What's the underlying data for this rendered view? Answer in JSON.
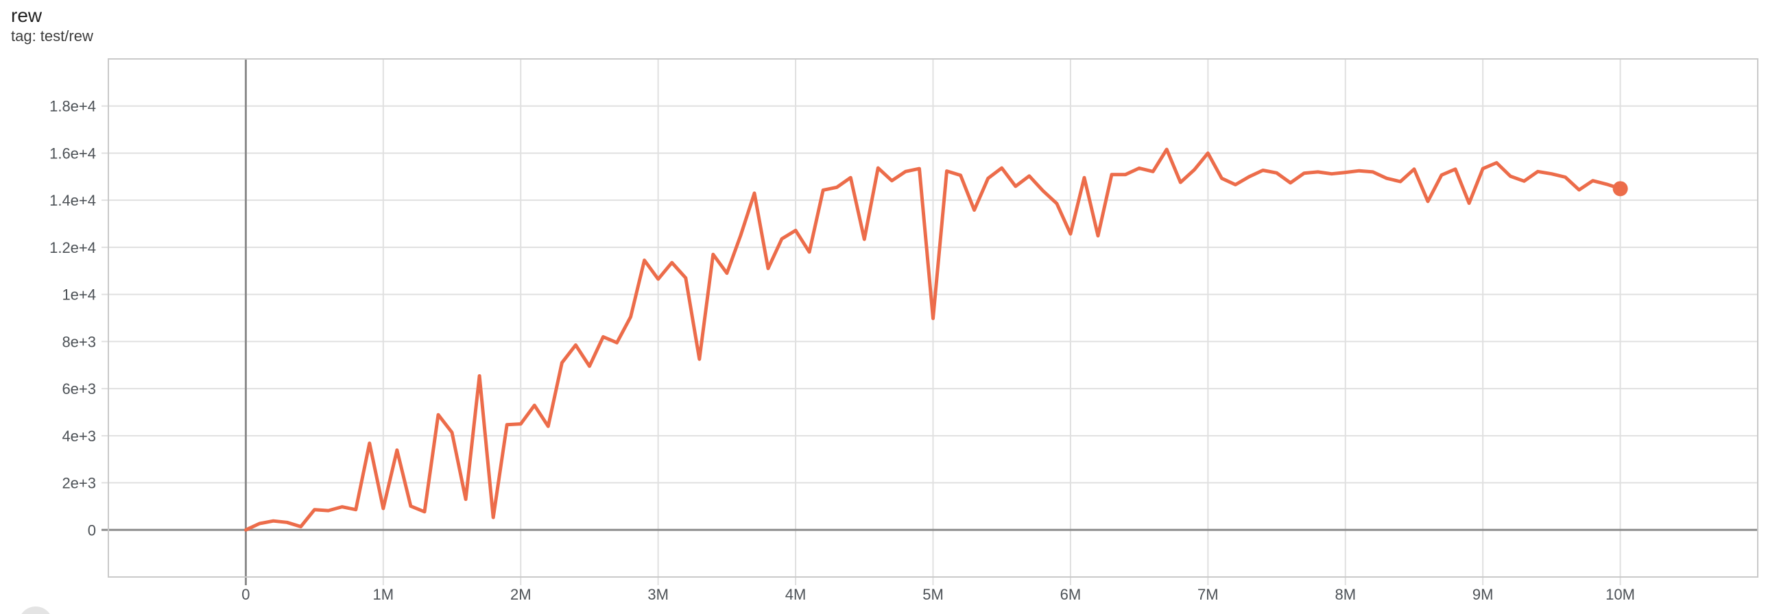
{
  "header": {
    "title": "rew",
    "tag": "tag: test/rew"
  },
  "colors": {
    "line": "#ec6c4a",
    "grid": "#e0e0e0",
    "zero_axis": "#8c8c8c",
    "plot_border": "#c9c9c9",
    "tick_label": "#4c5156",
    "title_text": "#212121",
    "corner_circle": "#e4e4e4"
  },
  "chart_data": {
    "type": "line",
    "title": "rew",
    "subtitle": "tag: test/rew",
    "series_name": "test/rew",
    "grid": true,
    "legend_position": "none",
    "end_marker": true,
    "xlim": [
      -1,
      11
    ],
    "ylim": [
      -2000,
      20000
    ],
    "x_unit": "millions of steps",
    "xticks": [
      {
        "v": 0,
        "label": "0"
      },
      {
        "v": 1,
        "label": "1M"
      },
      {
        "v": 2,
        "label": "2M"
      },
      {
        "v": 3,
        "label": "3M"
      },
      {
        "v": 4,
        "label": "4M"
      },
      {
        "v": 5,
        "label": "5M"
      },
      {
        "v": 6,
        "label": "6M"
      },
      {
        "v": 7,
        "label": "7M"
      },
      {
        "v": 8,
        "label": "8M"
      },
      {
        "v": 9,
        "label": "9M"
      },
      {
        "v": 10,
        "label": "10M"
      }
    ],
    "yticks": [
      {
        "v": 0,
        "label": "0"
      },
      {
        "v": 2000,
        "label": "2e+3"
      },
      {
        "v": 4000,
        "label": "4e+3"
      },
      {
        "v": 6000,
        "label": "6e+3"
      },
      {
        "v": 8000,
        "label": "8e+3"
      },
      {
        "v": 10000,
        "label": "1e+4"
      },
      {
        "v": 12000,
        "label": "1.2e+4"
      },
      {
        "v": 14000,
        "label": "1.4e+4"
      },
      {
        "v": 16000,
        "label": "1.6e+4"
      },
      {
        "v": 18000,
        "label": "1.8e+4"
      }
    ],
    "x_millions": [
      0,
      0.1,
      0.2,
      0.3,
      0.4,
      0.5,
      0.6,
      0.7,
      0.8,
      0.9,
      1,
      1.1,
      1.2,
      1.3,
      1.4,
      1.5,
      1.6,
      1.7,
      1.8,
      1.9,
      2,
      2.1,
      2.2,
      2.3,
      2.4,
      2.5,
      2.6,
      2.7,
      2.8,
      2.9,
      3,
      3.1,
      3.2,
      3.3,
      3.4,
      3.5,
      3.6,
      3.7,
      3.8,
      3.9,
      4,
      4.1,
      4.2,
      4.3,
      4.4,
      4.5,
      4.6,
      4.7,
      4.8,
      4.9,
      5,
      5.1,
      5.2,
      5.3,
      5.4,
      5.5,
      5.6,
      5.7,
      5.8,
      5.9,
      6,
      6.1,
      6.2,
      6.3,
      6.4,
      6.5,
      6.6,
      6.7,
      6.8,
      6.9,
      7,
      7.1,
      7.2,
      7.3,
      7.4,
      7.5,
      7.6,
      7.7,
      7.8,
      7.9,
      8,
      8.1,
      8.2,
      8.3,
      8.4,
      8.5,
      8.6,
      8.7,
      8.8,
      8.9,
      9,
      9.1,
      9.2,
      9.3,
      9.4,
      9.5,
      9.6,
      9.7,
      9.8,
      9.9,
      10
    ],
    "values": [
      0,
      270,
      380,
      320,
      140,
      860,
      820,
      980,
      860,
      3680,
      910,
      3390,
      1010,
      770,
      4890,
      4140,
      1300,
      6540,
      530,
      4470,
      4500,
      5290,
      4400,
      7100,
      7850,
      6950,
      8200,
      7950,
      9050,
      11450,
      10650,
      11350,
      10700,
      7250,
      11700,
      10900,
      12500,
      14300,
      11100,
      12360,
      12720,
      11800,
      14430,
      14550,
      14960,
      12340,
      15370,
      14830,
      15220,
      15340,
      8980,
      15240,
      15060,
      13580,
      14930,
      15370,
      14590,
      15030,
      14400,
      13860,
      12570,
      14960,
      12490,
      15090,
      15090,
      15360,
      15220,
      16160,
      14760,
      15290,
      16000,
      14930,
      14660,
      15000,
      15270,
      15160,
      14740,
      15150,
      15200,
      15120,
      15180,
      15250,
      15200,
      14930,
      14790,
      15320,
      13950,
      15070,
      15320,
      13870,
      15340,
      15590,
      15020,
      14810,
      15220,
      15120,
      14980,
      14440,
      14830,
      14680,
      14490
    ],
    "final_point": {
      "x_millions": 10,
      "value": 14490
    }
  }
}
